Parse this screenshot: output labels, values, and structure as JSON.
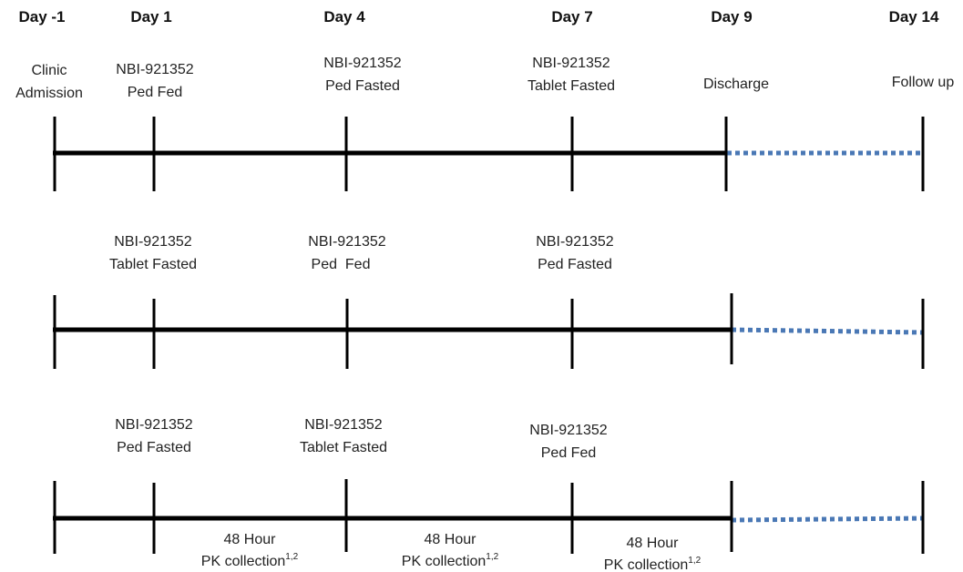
{
  "days": [
    "Day -1",
    "Day 1",
    "Day 4",
    "Day 7",
    "Day 9",
    "Day 14"
  ],
  "top_labels": {
    "clinic_admission": [
      "Clinic",
      "Admission"
    ],
    "discharge": "Discharge",
    "follow_up": "Follow up"
  },
  "timelines": [
    {
      "events": [
        [
          "NBI-921352",
          "Ped Fed"
        ],
        [
          "NBI-921352",
          "Ped Fasted"
        ],
        [
          "NBI-921352",
          "Tablet Fasted"
        ]
      ]
    },
    {
      "events": [
        [
          "NBI-921352",
          "Tablet Fasted"
        ],
        [
          "NBI-921352",
          "Ped  Fed"
        ],
        [
          "NBI-921352",
          "Ped Fasted"
        ]
      ]
    },
    {
      "events": [
        [
          "NBI-921352",
          "Ped Fasted"
        ],
        [
          "NBI-921352",
          "Tablet Fasted"
        ],
        [
          "NBI-921352",
          "Ped Fed"
        ]
      ]
    }
  ],
  "pk_collection": {
    "line1": "48 Hour",
    "line2": "PK collection",
    "superscript": "1,2"
  },
  "colors": {
    "axis": "#000000",
    "follow_up_dotted": "#4a78b5"
  }
}
